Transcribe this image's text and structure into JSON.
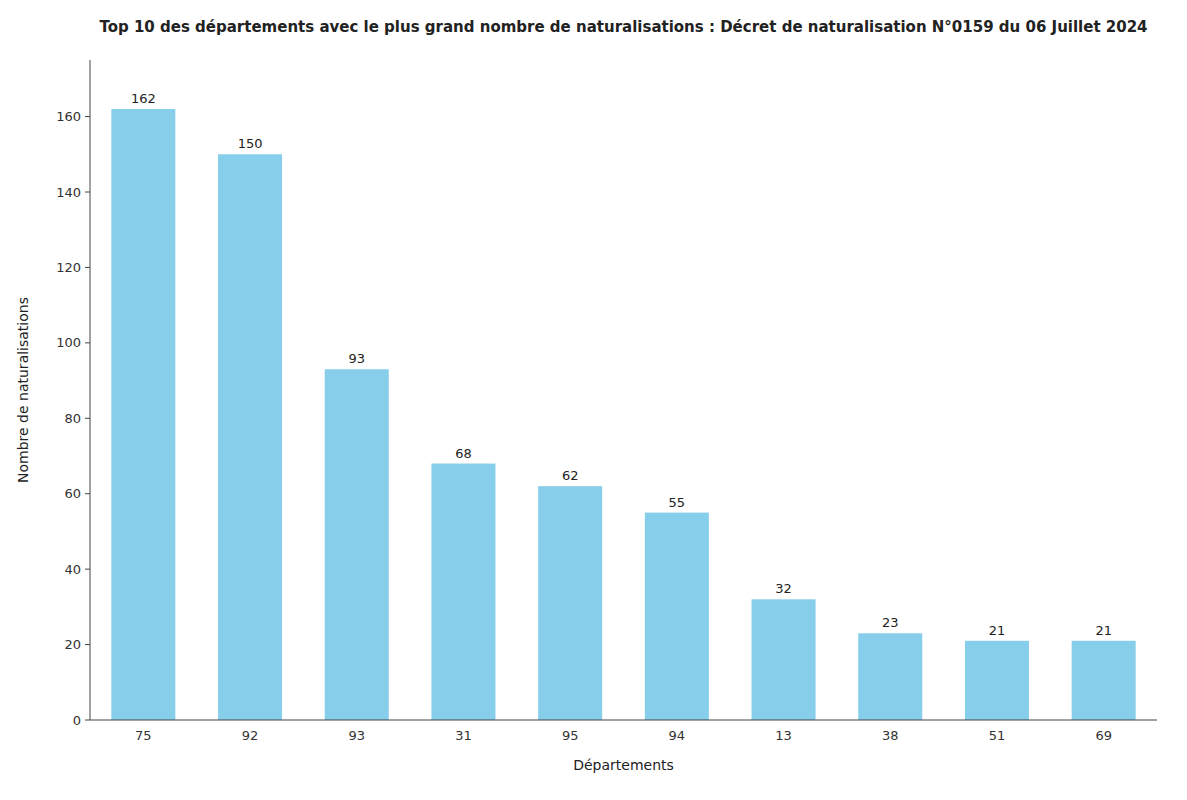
{
  "chart_data": {
    "type": "bar",
    "title": "Top 10 des départements avec le plus grand nombre de naturalisations : Décret de naturalisation N°0159 du 06 Juillet 2024",
    "xlabel": "Départements",
    "ylabel": "Nombre de naturalisations",
    "categories": [
      "75",
      "92",
      "93",
      "31",
      "95",
      "94",
      "13",
      "38",
      "51",
      "69"
    ],
    "values": [
      162,
      150,
      93,
      68,
      62,
      55,
      32,
      23,
      21,
      21
    ],
    "color": "#87CEEB",
    "ylim": [
      0,
      175
    ],
    "yticks": [
      0,
      20,
      40,
      60,
      80,
      100,
      120,
      140,
      160
    ],
    "data_labels": true,
    "grid": false
  }
}
